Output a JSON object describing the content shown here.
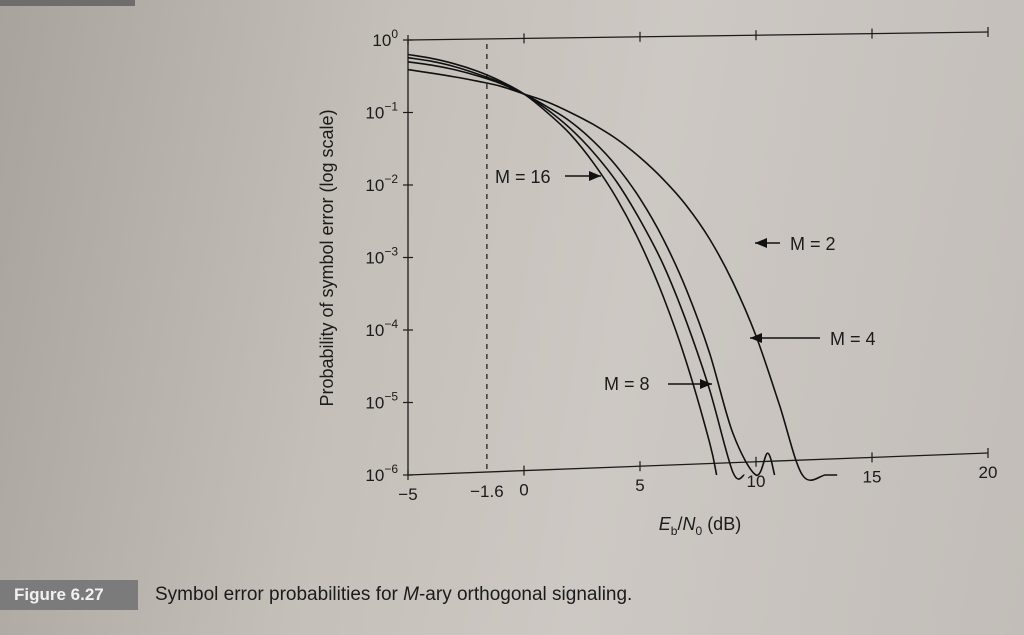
{
  "chart_data": {
    "type": "line",
    "title": "",
    "xlabel_parts": {
      "E": "E",
      "b": "b",
      "slash": "/",
      "N": "N",
      "zero": "0",
      "unit": " (dB)"
    },
    "ylabel": "Probability of symbol error (log scale)",
    "yscale": "log",
    "xlim": [
      -5,
      20
    ],
    "ylim": [
      1e-06,
      1
    ],
    "x_ticks": [
      {
        "value": -5,
        "label": "−5"
      },
      {
        "value": -1.6,
        "label": "−1.6"
      },
      {
        "value": 0,
        "label": "0"
      },
      {
        "value": 5,
        "label": "5"
      },
      {
        "value": 10,
        "label": "10"
      },
      {
        "value": 15,
        "label": "15"
      },
      {
        "value": 20,
        "label": "20"
      }
    ],
    "y_ticks": [
      {
        "value": 1,
        "base": "10",
        "exp": "0"
      },
      {
        "value": 0.1,
        "base": "10",
        "exp": "−1"
      },
      {
        "value": 0.01,
        "base": "10",
        "exp": "−2"
      },
      {
        "value": 0.001,
        "base": "10",
        "exp": "−3"
      },
      {
        "value": 0.0001,
        "base": "10",
        "exp": "−4"
      },
      {
        "value": 1e-05,
        "base": "10",
        "exp": "−5"
      },
      {
        "value": 1e-06,
        "base": "10",
        "exp": "−6"
      }
    ],
    "reference_line": {
      "x": -1.6
    },
    "series": [
      {
        "key": "m2",
        "label": "M = 2",
        "x": [
          -5,
          -4,
          -3,
          -2,
          -1,
          0,
          1,
          2,
          3,
          4,
          5,
          6,
          7,
          8,
          9,
          10,
          11,
          12,
          13,
          13.5
        ],
        "y": [
          0.39,
          0.35,
          0.31,
          0.27,
          0.23,
          0.18,
          0.14,
          0.1,
          0.068,
          0.043,
          0.024,
          0.012,
          0.0052,
          0.0018,
          0.00046,
          8.3e-05,
          9.5e-06,
          8e-07,
          4e-08,
          1e-06
        ]
      },
      {
        "key": "m4",
        "label": "M = 4",
        "x": [
          -5,
          -4,
          -3,
          -2,
          -1,
          0,
          1,
          2,
          3,
          4,
          5,
          6,
          7,
          8,
          9,
          10,
          10.5,
          10.8
        ],
        "y": [
          0.5,
          0.45,
          0.39,
          0.32,
          0.25,
          0.18,
          0.12,
          0.075,
          0.04,
          0.018,
          0.0065,
          0.0018,
          0.00036,
          4.8e-05,
          3.8e-06,
          1.7e-07,
          2e-06,
          1e-06
        ]
      },
      {
        "key": "m8",
        "label": "M = 8",
        "x": [
          -5,
          -4,
          -3,
          -2,
          -1,
          0,
          1,
          2,
          3,
          4,
          5,
          6,
          7,
          8,
          9,
          9.5
        ],
        "y": [
          0.57,
          0.51,
          0.43,
          0.34,
          0.26,
          0.18,
          0.11,
          0.06,
          0.028,
          0.011,
          0.0033,
          0.0008,
          0.00013,
          1.5e-05,
          1.1e-06,
          1e-06
        ]
      },
      {
        "key": "m16",
        "label": "M = 16",
        "x": [
          -5,
          -4,
          -3,
          -2,
          -1,
          0,
          1,
          2,
          3,
          4,
          5,
          6,
          7,
          8,
          8.3
        ],
        "y": [
          0.63,
          0.56,
          0.47,
          0.37,
          0.27,
          0.18,
          0.1,
          0.05,
          0.02,
          0.0065,
          0.0016,
          0.00029,
          3.6e-05,
          2.8e-06,
          1e-06
        ]
      }
    ],
    "annotations": [
      {
        "series": "m16",
        "text": "M = 16",
        "arrow": "right"
      },
      {
        "series": "m2",
        "text": "M = 2",
        "arrow": "left"
      },
      {
        "series": "m4",
        "text": "M = 4",
        "arrow": "left"
      },
      {
        "series": "m8",
        "text": "M = 8",
        "arrow": "right"
      }
    ],
    "grid": false,
    "legend": "none"
  },
  "caption": {
    "figure_label": "Figure 6.27",
    "text_before": "Symbol error probabilities for ",
    "text_italic": "M",
    "text_after": "-ary orthogonal signaling."
  }
}
